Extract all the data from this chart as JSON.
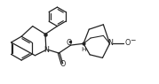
{
  "bg_color": "#ffffff",
  "line_color": "#222222",
  "line_width": 0.9,
  "figsize": [
    1.79,
    0.95
  ],
  "dpi": 100,
  "xlim": [
    0,
    10
  ],
  "ylim": [
    0,
    5.3
  ]
}
